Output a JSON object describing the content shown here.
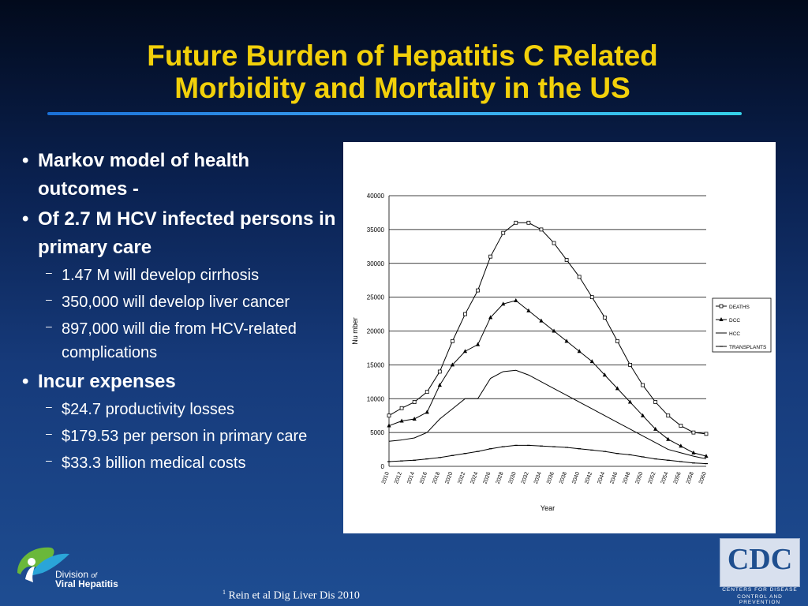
{
  "slide": {
    "title_line1": "Future Burden of Hepatitis C Related",
    "title_line2": "Morbidity and Mortality in the US"
  },
  "bullets": [
    {
      "text": "Markov model of health outcomes -",
      "sub": []
    },
    {
      "text": "Of 2.7 M HCV infected persons in primary care",
      "sub": [
        "1.47 M will develop cirrhosis",
        "350,000 will develop liver cancer",
        "897,000 will die from HCV-related complications"
      ]
    },
    {
      "text": "Incur expenses",
      "sub": [
        "$24.7  productivity losses",
        "$179.53 per person in primary care",
        "$33.3 billion medical costs"
      ]
    }
  ],
  "citation": "Rein et al Dig Liver Dis 2010",
  "logo": {
    "line1": "Division",
    "of": "of",
    "line2": "Viral Hepatitis"
  },
  "cdc": {
    "letters": "CDC",
    "caption1": "CENTERS FOR DISEASE",
    "caption2": "CONTROL AND PREVENTION"
  },
  "chart_data": {
    "type": "line",
    "xlabel": "Year",
    "ylabel": "Nu mber",
    "ylim": [
      0,
      40000
    ],
    "yticks": [
      0,
      5000,
      10000,
      15000,
      20000,
      25000,
      30000,
      35000,
      40000
    ],
    "grid": true,
    "legend_position": "right",
    "x": [
      2010,
      2012,
      2014,
      2016,
      2018,
      2020,
      2022,
      2024,
      2026,
      2028,
      2030,
      2032,
      2034,
      2036,
      2038,
      2040,
      2042,
      2044,
      2046,
      2048,
      2050,
      2052,
      2054,
      2056,
      2058,
      2060
    ],
    "x_tick_labels": [
      "2010",
      "2012",
      "2014",
      "2016",
      "2018",
      "2020",
      "2022",
      "2024",
      "2026",
      "2028",
      "2030",
      "2032",
      "2034",
      "2036",
      "2038",
      "2040",
      "2042",
      "2044",
      "2046",
      "2048",
      "2050",
      "2052",
      "2054",
      "2056",
      "2058",
      "2060"
    ],
    "series": [
      {
        "name": "DEATHS",
        "marker": "square",
        "values": [
          7500,
          8600,
          9500,
          11000,
          14000,
          18500,
          22500,
          26000,
          31000,
          34500,
          36000,
          36000,
          35000,
          33000,
          30500,
          28000,
          25000,
          22000,
          18500,
          15000,
          12000,
          9500,
          7500,
          6000,
          5000,
          4800
        ]
      },
      {
        "name": "DCC",
        "marker": "triangle",
        "values": [
          6000,
          6700,
          7000,
          8000,
          12000,
          15000,
          17000,
          18000,
          22000,
          24000,
          24500,
          23000,
          21500,
          20000,
          18500,
          17000,
          15500,
          13500,
          11500,
          9500,
          7500,
          5500,
          4000,
          3000,
          2000,
          1500
        ]
      },
      {
        "name": "HCC",
        "marker": "none",
        "values": [
          3700,
          3900,
          4200,
          5000,
          7000,
          8500,
          10000,
          10000,
          13000,
          14000,
          14200,
          13500,
          12500,
          11500,
          10500,
          9500,
          8500,
          7500,
          6500,
          5500,
          4500,
          3500,
          2500,
          2000,
          1500,
          1100
        ]
      },
      {
        "name": "TRANSPLANTS",
        "marker": "dash",
        "values": [
          700,
          800,
          900,
          1100,
          1300,
          1600,
          1900,
          2200,
          2600,
          2900,
          3100,
          3100,
          3000,
          2900,
          2800,
          2600,
          2400,
          2200,
          1900,
          1700,
          1400,
          1100,
          900,
          700,
          500,
          400
        ]
      }
    ]
  }
}
